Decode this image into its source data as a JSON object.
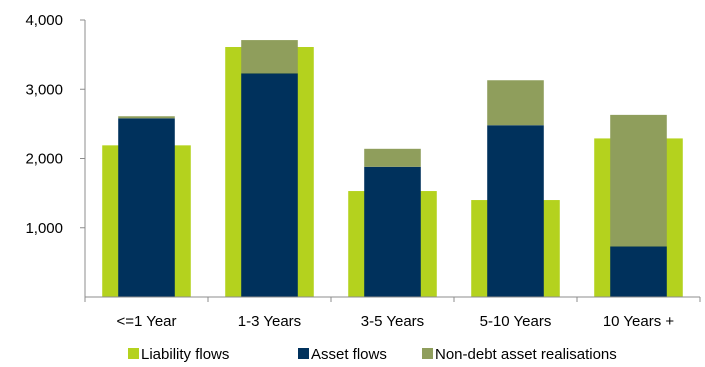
{
  "chart_data": {
    "type": "bar",
    "categories": [
      "<=1 Year",
      "1-3 Years",
      "3-5 Years",
      "5-10 Years",
      "10 Years +"
    ],
    "series": [
      {
        "name": "Liability flows",
        "values": [
          2190,
          3610,
          1530,
          1400,
          2290
        ],
        "color": "#b4d21e"
      },
      {
        "name": "Asset flows",
        "values": [
          2580,
          3230,
          1880,
          2480,
          730
        ],
        "color": "#00315c"
      },
      {
        "name": "Non-debt asset realisations",
        "values": [
          30,
          480,
          260,
          650,
          1900
        ],
        "color": "#8f9e5c"
      }
    ],
    "stacked_series": [
      "Asset flows",
      "Non-debt asset realisations"
    ],
    "ylim": [
      0,
      4000
    ],
    "yticks": [
      "4,000",
      "3,000",
      "2,000",
      "1,000"
    ],
    "ytick_values": [
      4000,
      3000,
      2000,
      1000
    ],
    "grid": false,
    "legend_position": "bottom",
    "title": "",
    "xlabel": "",
    "ylabel": ""
  }
}
